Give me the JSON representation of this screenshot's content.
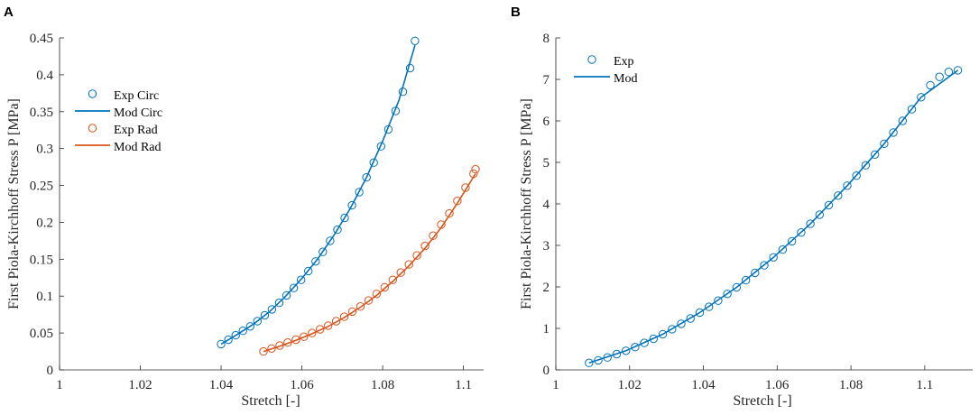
{
  "chart_data": [
    {
      "type": "scatter",
      "panel_label": "A",
      "xlabel": "Stretch [-]",
      "ylabel": "First Piola-Kirchhoff Stress P [MPa]",
      "xlim": [
        1,
        1.105
      ],
      "ylim": [
        0,
        0.45
      ],
      "xticks": [
        1,
        1.02,
        1.04,
        1.06,
        1.08,
        1.1
      ],
      "xtick_labels": [
        "1",
        "1.02",
        "1.04",
        "1.06",
        "1.08",
        "1.1"
      ],
      "yticks": [
        0,
        0.05,
        0.1,
        0.15,
        0.2,
        0.25,
        0.3,
        0.35,
        0.4,
        0.45
      ],
      "ytick_labels": [
        "0",
        "0.05",
        "0.1",
        "0.15",
        "0.2",
        "0.25",
        "0.3",
        "0.35",
        "0.4",
        "0.45"
      ],
      "legend_position": "top-left",
      "legend": [
        {
          "label": "Exp Circ",
          "kind": "marker",
          "color": "#0072BD"
        },
        {
          "label": "Mod Circ",
          "kind": "line",
          "color": "#0072BD"
        },
        {
          "label": "Exp Rad",
          "kind": "marker",
          "color": "#D95319"
        },
        {
          "label": "Mod Rad",
          "kind": "line",
          "color": "#D95319"
        }
      ],
      "series": [
        {
          "name": "Exp Circ",
          "kind": "marker",
          "color": "#0072BD",
          "x": [
            1.04,
            1.0418,
            1.0436,
            1.0454,
            1.0472,
            1.049,
            1.0508,
            1.0526,
            1.0544,
            1.0562,
            1.058,
            1.0598,
            1.0616,
            1.0634,
            1.0652,
            1.067,
            1.0688,
            1.0706,
            1.0724,
            1.0742,
            1.076,
            1.0778,
            1.0796,
            1.0814,
            1.0832,
            1.085,
            1.0868,
            1.088
          ],
          "y": [
            0.035,
            0.041,
            0.047,
            0.053,
            0.059,
            0.066,
            0.074,
            0.082,
            0.091,
            0.101,
            0.111,
            0.122,
            0.134,
            0.147,
            0.16,
            0.175,
            0.19,
            0.206,
            0.223,
            0.241,
            0.261,
            0.281,
            0.303,
            0.326,
            0.351,
            0.377,
            0.409,
            0.446
          ]
        },
        {
          "name": "Mod Circ",
          "kind": "line",
          "color": "#0072BD",
          "x": [
            1.04,
            1.044,
            1.048,
            1.052,
            1.056,
            1.06,
            1.064,
            1.068,
            1.072,
            1.076,
            1.08,
            1.084,
            1.088
          ],
          "y": [
            0.035,
            0.048,
            0.062,
            0.079,
            0.1,
            0.124,
            0.151,
            0.183,
            0.219,
            0.261,
            0.31,
            0.365,
            0.44
          ]
        },
        {
          "name": "Exp Rad",
          "kind": "marker",
          "color": "#D95319",
          "x": [
            1.0505,
            1.0525,
            1.0545,
            1.0565,
            1.0585,
            1.0605,
            1.0625,
            1.0645,
            1.0665,
            1.0685,
            1.0705,
            1.0725,
            1.0745,
            1.0765,
            1.0785,
            1.0805,
            1.0825,
            1.0845,
            1.0865,
            1.0885,
            1.0905,
            1.0925,
            1.0945,
            1.0965,
            1.0985,
            1.1005,
            1.1025,
            1.103
          ],
          "y": [
            0.025,
            0.029,
            0.033,
            0.037,
            0.041,
            0.045,
            0.05,
            0.055,
            0.06,
            0.066,
            0.072,
            0.079,
            0.086,
            0.094,
            0.103,
            0.112,
            0.122,
            0.132,
            0.143,
            0.155,
            0.168,
            0.182,
            0.197,
            0.212,
            0.229,
            0.247,
            0.266,
            0.272
          ]
        },
        {
          "name": "Mod Rad",
          "kind": "line",
          "color": "#D95319",
          "x": [
            1.0505,
            1.0545,
            1.0585,
            1.0625,
            1.0665,
            1.0705,
            1.0745,
            1.0785,
            1.0825,
            1.0865,
            1.0905,
            1.0945,
            1.0985,
            1.103
          ],
          "y": [
            0.025,
            0.032,
            0.04,
            0.049,
            0.059,
            0.071,
            0.085,
            0.101,
            0.12,
            0.141,
            0.165,
            0.193,
            0.226,
            0.266
          ]
        }
      ]
    },
    {
      "type": "scatter",
      "panel_label": "B",
      "xlabel": "Stretch [-]",
      "ylabel": "First Piola-Kirchhoff Stress P [MPa]",
      "xlim": [
        1,
        1.113
      ],
      "ylim": [
        0,
        8
      ],
      "xticks": [
        1,
        1.02,
        1.04,
        1.06,
        1.08,
        1.1
      ],
      "xtick_labels": [
        "1",
        "1.02",
        "1.04",
        "1.06",
        "1.08",
        "1.1"
      ],
      "yticks": [
        0,
        1,
        2,
        3,
        4,
        5,
        6,
        7,
        8
      ],
      "ytick_labels": [
        "0",
        "1",
        "2",
        "3",
        "4",
        "5",
        "6",
        "7",
        "8"
      ],
      "legend_position": "top-left",
      "legend": [
        {
          "label": "Exp",
          "kind": "marker",
          "color": "#0072BD"
        },
        {
          "label": "Mod",
          "kind": "line",
          "color": "#0072BD"
        }
      ],
      "series": [
        {
          "name": "Exp",
          "kind": "marker",
          "color": "#0072BD",
          "x": [
            1.009,
            1.0115,
            1.014,
            1.0165,
            1.019,
            1.0215,
            1.024,
            1.0265,
            1.029,
            1.0315,
            1.034,
            1.0365,
            1.039,
            1.0415,
            1.044,
            1.0465,
            1.049,
            1.0515,
            1.054,
            1.0565,
            1.059,
            1.0615,
            1.064,
            1.0665,
            1.069,
            1.0715,
            1.074,
            1.0765,
            1.079,
            1.0815,
            1.084,
            1.0865,
            1.089,
            1.0915,
            1.094,
            1.0965,
            1.099,
            1.1015,
            1.104,
            1.1065,
            1.109
          ],
          "y": [
            0.17,
            0.23,
            0.3,
            0.38,
            0.46,
            0.55,
            0.65,
            0.75,
            0.86,
            0.98,
            1.11,
            1.24,
            1.38,
            1.52,
            1.67,
            1.83,
            1.99,
            2.16,
            2.34,
            2.52,
            2.71,
            2.9,
            3.1,
            3.31,
            3.52,
            3.74,
            3.97,
            4.2,
            4.44,
            4.68,
            4.93,
            5.19,
            5.45,
            5.72,
            6.0,
            6.28,
            6.57,
            6.86,
            7.06,
            7.18,
            7.22
          ]
        },
        {
          "name": "Mod",
          "kind": "line",
          "color": "#0072BD",
          "x": [
            1.009,
            1.019,
            1.029,
            1.039,
            1.049,
            1.059,
            1.069,
            1.079,
            1.089,
            1.099,
            1.109
          ],
          "y": [
            0.17,
            0.46,
            0.86,
            1.38,
            1.99,
            2.71,
            3.52,
            4.44,
            5.45,
            6.57,
            7.22
          ]
        }
      ]
    }
  ]
}
